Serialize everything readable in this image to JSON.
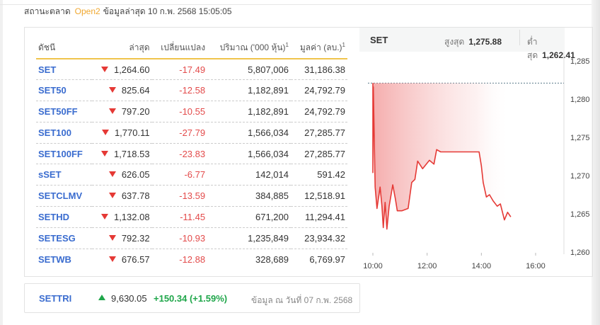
{
  "status": {
    "label": "สถานะตลาด",
    "value": "Open2",
    "updated": "ข้อมูลล่าสุด 10 ก.พ. 2568 15:05:05"
  },
  "table": {
    "headers": [
      "ดัชนี",
      "ล่าสุด",
      "เปลี่ยนแปลง",
      "ปริมาณ ('000 หุ้น)",
      "มูลค่า (ลบ.)"
    ],
    "footnote": "1",
    "rows": [
      {
        "name": "SET",
        "last": "1,264.60",
        "change": "-17.49",
        "volume": "5,807,006",
        "value": "31,186.38",
        "direction": "down"
      },
      {
        "name": "SET50",
        "last": "825.64",
        "change": "-12.58",
        "volume": "1,182,891",
        "value": "24,792.79",
        "direction": "down"
      },
      {
        "name": "SET50FF",
        "last": "797.20",
        "change": "-10.55",
        "volume": "1,182,891",
        "value": "24,792.79",
        "direction": "down"
      },
      {
        "name": "SET100",
        "last": "1,770.11",
        "change": "-27.79",
        "volume": "1,566,034",
        "value": "27,285.77",
        "direction": "down"
      },
      {
        "name": "SET100FF",
        "last": "1,718.53",
        "change": "-23.83",
        "volume": "1,566,034",
        "value": "27,285.77",
        "direction": "down"
      },
      {
        "name": "sSET",
        "last": "626.05",
        "change": "-6.77",
        "volume": "142,014",
        "value": "591.42",
        "direction": "down"
      },
      {
        "name": "SETCLMV",
        "last": "637.78",
        "change": "-13.59",
        "volume": "384,885",
        "value": "12,518.91",
        "direction": "down"
      },
      {
        "name": "SETHD",
        "last": "1,132.08",
        "change": "-11.45",
        "volume": "671,200",
        "value": "11,294.41",
        "direction": "down"
      },
      {
        "name": "SETESG",
        "last": "792.32",
        "change": "-10.93",
        "volume": "1,235,849",
        "value": "23,934.32",
        "direction": "down"
      },
      {
        "name": "SETWB",
        "last": "676.57",
        "change": "-12.88",
        "volume": "328,689",
        "value": "6,769.97",
        "direction": "down"
      }
    ]
  },
  "chart_panel": {
    "symbol": "SET",
    "high_label": "สูงสุด",
    "high": "1,275.88",
    "low_label": "ต่ำสุด",
    "low": "1,262.41"
  },
  "chart_data": {
    "type": "area",
    "x_ticks": [
      "10:00",
      "12:00",
      "14:00",
      "16:00"
    ],
    "y_ticks": [
      "1,260",
      "1,265",
      "1,270",
      "1,275",
      "1,280",
      "1,285"
    ],
    "ylim": [
      1260,
      1285
    ],
    "xlim": [
      "10:00",
      "16:00"
    ],
    "previous_close": 1282.09,
    "line_color": "#e53935",
    "series": [
      {
        "points": [
          [
            "10:00",
            1282.1
          ],
          [
            "10:00",
            1270.4
          ],
          [
            "10:01",
            1281.6
          ],
          [
            "10:05",
            1268.5
          ],
          [
            "10:09",
            1265.7
          ],
          [
            "10:16",
            1268.5
          ],
          [
            "10:20",
            1266.0
          ],
          [
            "10:23",
            1263.2
          ],
          [
            "10:27",
            1266.5
          ],
          [
            "10:31",
            1263.0
          ],
          [
            "10:36",
            1266.0
          ],
          [
            "10:44",
            1268.8
          ],
          [
            "10:50",
            1266.9
          ],
          [
            "10:54",
            1265.4
          ],
          [
            "11:04",
            1265.4
          ],
          [
            "11:18",
            1265.7
          ],
          [
            "11:26",
            1269.1
          ],
          [
            "11:33",
            1269.5
          ],
          [
            "11:39",
            1271.9
          ],
          [
            "11:50",
            1270.9
          ],
          [
            "12:05",
            1272.0
          ],
          [
            "12:15",
            1271.5
          ],
          [
            "12:21",
            1273.4
          ],
          [
            "12:30",
            1273.1
          ],
          [
            "13:55",
            1273.1
          ],
          [
            "14:00",
            1271.3
          ],
          [
            "14:04",
            1269.1
          ],
          [
            "14:11",
            1267.2
          ],
          [
            "14:18",
            1267.5
          ],
          [
            "14:26",
            1266.7
          ],
          [
            "14:35",
            1266.0
          ],
          [
            "14:42",
            1266.3
          ],
          [
            "14:51",
            1264.2
          ],
          [
            "14:58",
            1265.2
          ],
          [
            "15:05",
            1264.6
          ]
        ]
      }
    ]
  },
  "settri": {
    "name": "SETTRI",
    "last": "9,630.05",
    "change": "+150.34 (+1.59%)",
    "as_of": "ข้อมูล ณ วันที่ 07 ก.พ. 2568",
    "direction": "up"
  }
}
